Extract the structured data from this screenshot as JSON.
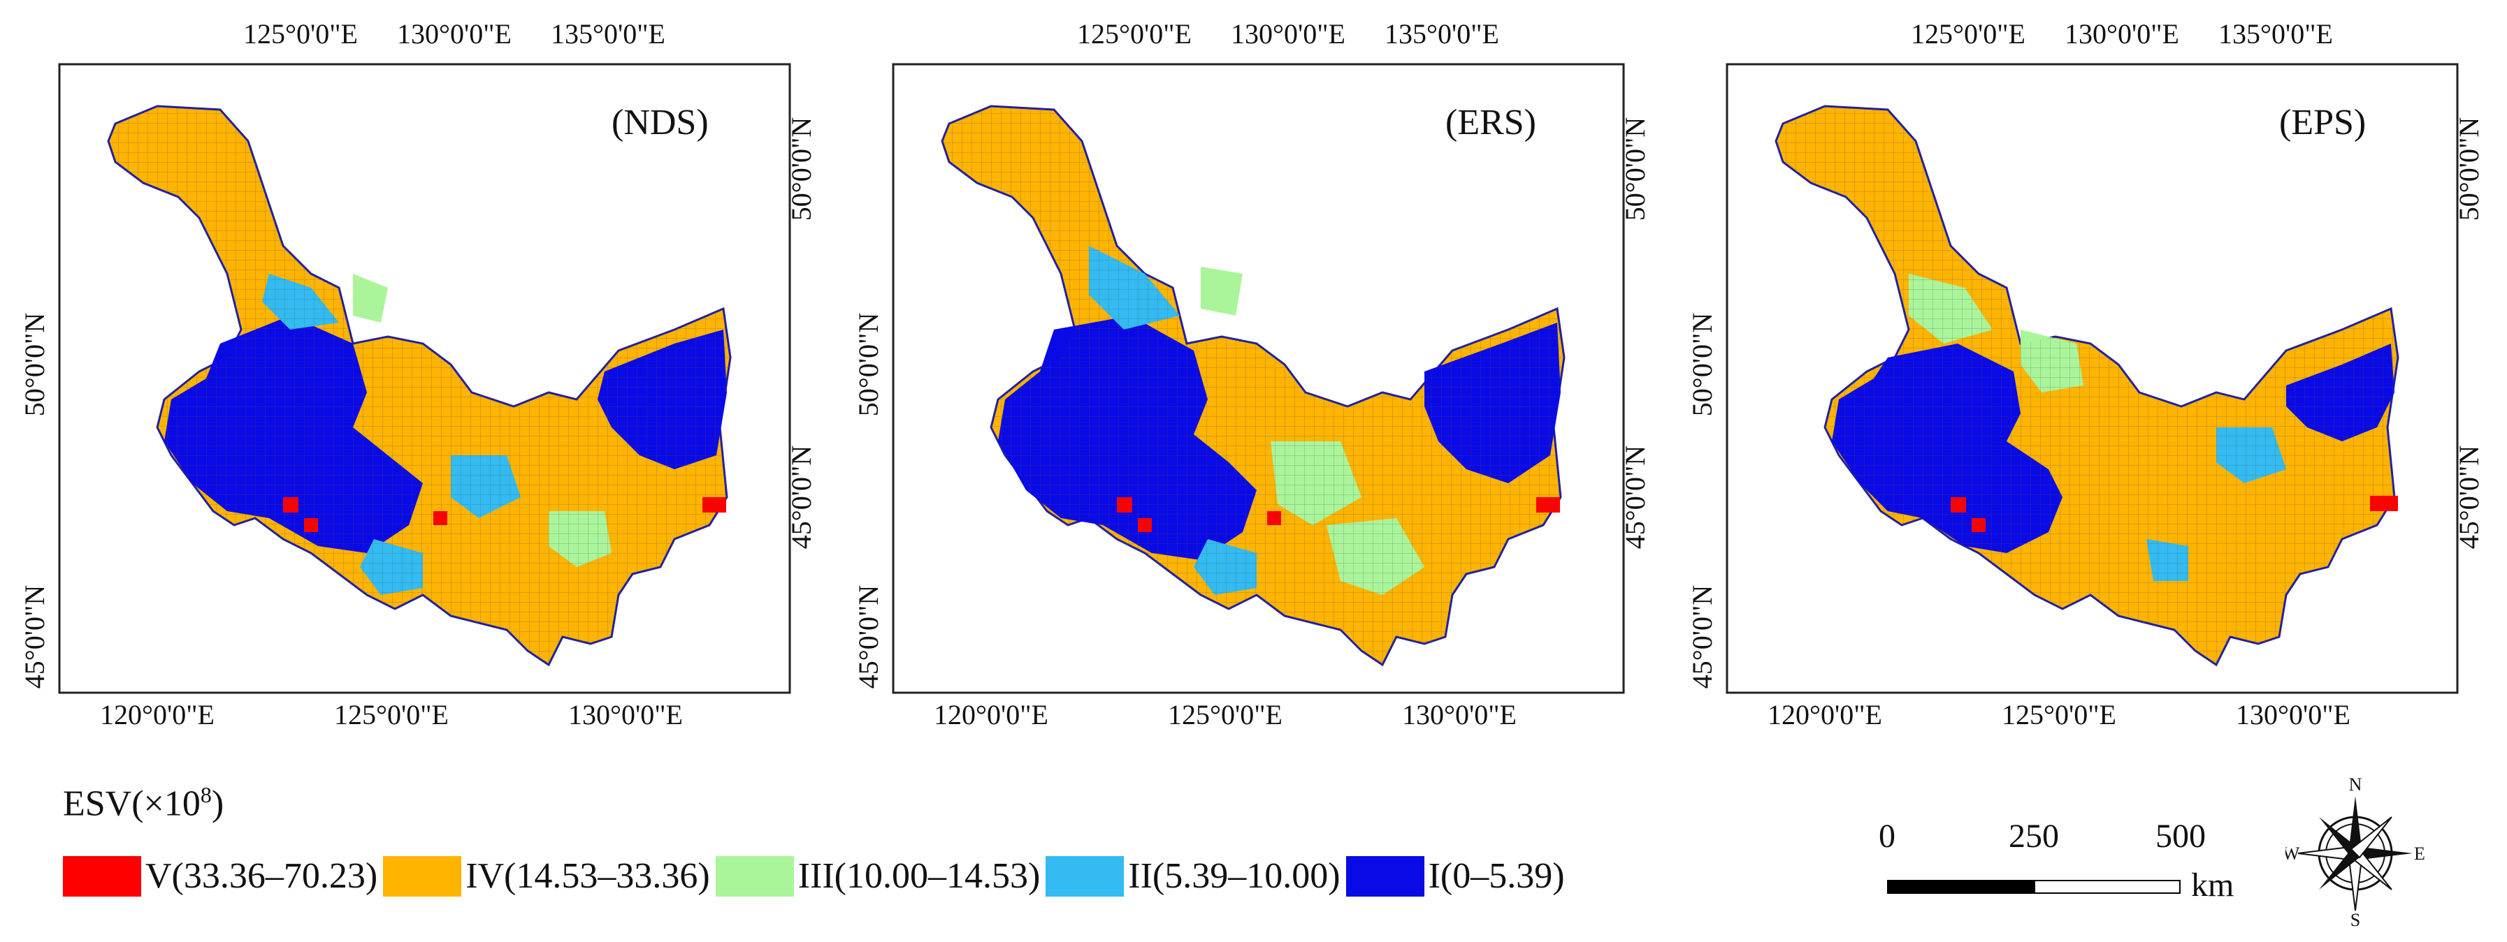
{
  "maps": [
    {
      "id": "nds",
      "panel_label": "(NDS)",
      "top_ticks": [
        "125°0'0\"E",
        "130°0'0\"E",
        "135°0'0\"E"
      ],
      "bottom_ticks": [
        "120°0'0\"E",
        "125°0'0\"E",
        "130°0'0\"E"
      ],
      "left_ticks": [
        "50°0'0\"N",
        "45°0'0\"N"
      ],
      "right_ticks": [
        "50°0'0\"N",
        "45°0'0\"N"
      ]
    },
    {
      "id": "ers",
      "panel_label": "(ERS)",
      "top_ticks": [
        "125°0'0\"E",
        "130°0'0\"E",
        "135°0'0\"E"
      ],
      "bottom_ticks": [
        "120°0'0\"E",
        "125°0'0\"E",
        "130°0'0\"E"
      ],
      "left_ticks": [
        "50°0'0\"N",
        "45°0'0\"N"
      ],
      "right_ticks": [
        "50°0'0\"N",
        "45°0'0\"N"
      ]
    },
    {
      "id": "eps",
      "panel_label": "(EPS)",
      "top_ticks": [
        "125°0'0\"E",
        "130°0'0\"E",
        "135°0'0\"E"
      ],
      "bottom_ticks": [
        "120°0'0\"E",
        "125°0'0\"E",
        "130°0'0\"E"
      ],
      "left_ticks": [
        "50°0'0\"N",
        "45°0'0\"N"
      ],
      "right_ticks": [
        "50°0'0\"N",
        "45°0'0\"N"
      ]
    }
  ],
  "legend": {
    "title_prefix": "ESV(×10",
    "title_exp": "8",
    "title_suffix": ")",
    "classes": [
      {
        "label": "V(33.36–70.23)",
        "color": "#ff0000"
      },
      {
        "label": "IV(14.53–33.36)",
        "color": "#ffb400"
      },
      {
        "label": "III(10.00–14.53)",
        "color": "#aaf59a"
      },
      {
        "label": "II(5.39–10.00)",
        "color": "#33bbf2"
      },
      {
        "label": "I(0–5.39)",
        "color": "#0a0ae6"
      }
    ]
  },
  "scale_bar": {
    "ticks": [
      "0",
      "250",
      "500"
    ],
    "unit": "km"
  },
  "north_arrow": {
    "n": "N",
    "s": "S",
    "e": "E",
    "w": "W"
  }
}
